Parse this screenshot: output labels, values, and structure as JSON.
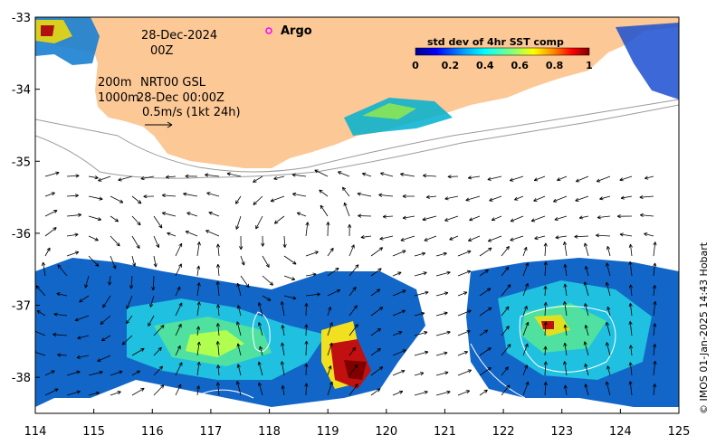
{
  "map": {
    "date_line": "28-Dec-2024",
    "hour_line": "00Z",
    "contour_line_1": "200m",
    "contour_line_2": "1000m",
    "source_line_1": "NRT00 GSL",
    "source_line_2": "28-Dec 00:00Z",
    "scale_label": "0.5m/s (1kt 24h)",
    "argo_label": "Argo",
    "argo_marker_color": "#ff00ff",
    "land_color": "#fcc896",
    "credit": "© IMOS 01-Jan-2025 14:43 Hobart"
  },
  "colorbar": {
    "title": "std dev of 4hr SST comp",
    "ticks": [
      "0",
      "0.2",
      "0.4",
      "0.6",
      "0.8",
      "1"
    ],
    "colors": [
      "#00008b",
      "#0000ff",
      "#00a0ff",
      "#00ffff",
      "#80ff80",
      "#ffff00",
      "#ff8000",
      "#ff0000",
      "#800000"
    ]
  },
  "axes": {
    "x_ticks": [
      "114",
      "115",
      "116",
      "117",
      "118",
      "119",
      "120",
      "121",
      "122",
      "123",
      "124",
      "125"
    ],
    "y_ticks": [
      "-33",
      "-34",
      "-35",
      "-36",
      "-37",
      "-38"
    ],
    "xlim": [
      114,
      125
    ],
    "ylim": [
      -38.5,
      -33
    ]
  }
}
